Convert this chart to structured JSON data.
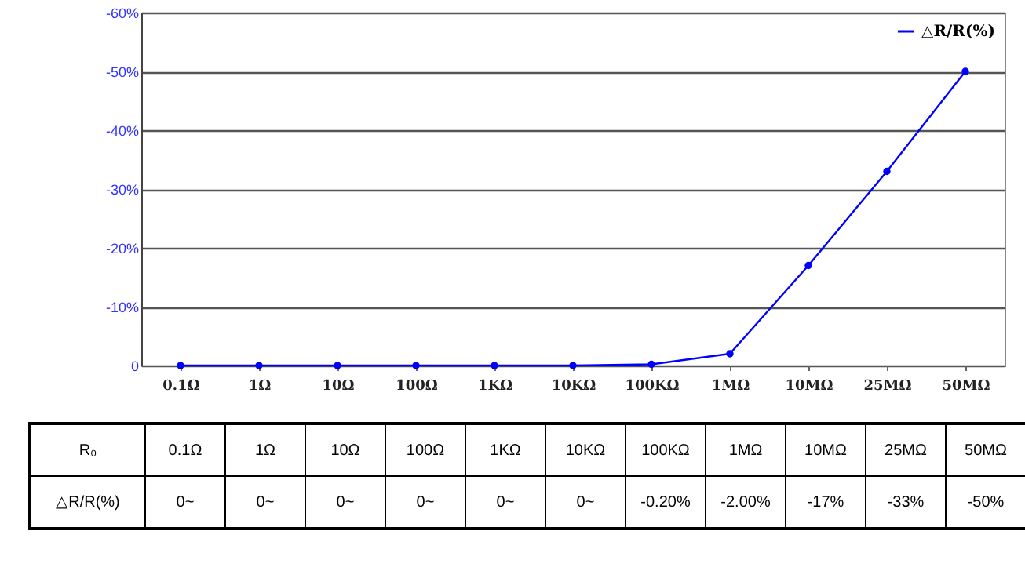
{
  "chart_data": {
    "type": "line",
    "xlabel": "R₀",
    "categories": [
      "0.1Ω",
      "1Ω",
      "10Ω",
      "100Ω",
      "1KΩ",
      "10KΩ",
      "100KΩ",
      "1MΩ",
      "10MΩ",
      "25MΩ",
      "50MΩ"
    ],
    "series": [
      {
        "name": "△R/R(%)",
        "color": "#0000ff",
        "values": [
          0,
          0,
          0,
          0,
          0,
          0,
          -0.2,
          -2,
          -17,
          -33,
          -50
        ],
        "value_labels": [
          "0~",
          "0~",
          "0~",
          "0~",
          "0~",
          "0~",
          "-0.20%",
          "-2.00%",
          "-17%",
          "-33%",
          "-50%"
        ]
      }
    ],
    "ylim": [
      0,
      -60
    ],
    "yticks": [
      {
        "value": 0,
        "label": "0"
      },
      {
        "value": -10,
        "label": "-10%"
      },
      {
        "value": -20,
        "label": "-20%"
      },
      {
        "value": -30,
        "label": "-30%"
      },
      {
        "value": -40,
        "label": "-40%"
      },
      {
        "value": -50,
        "label": "-50%"
      },
      {
        "value": -60,
        "label": "-60%"
      }
    ],
    "grid": "y",
    "legend": "top right",
    "marker": "circle",
    "line_style": "solid"
  }
}
